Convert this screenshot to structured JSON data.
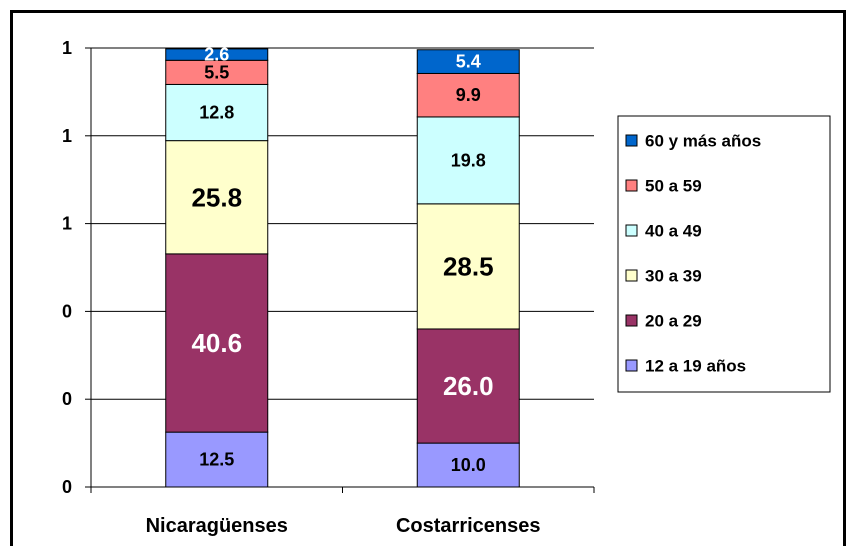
{
  "chart_data": {
    "type": "bar",
    "stacked": true,
    "categories": [
      "Nicaragüenses",
      "Costarricenses"
    ],
    "series": [
      {
        "name": "12 a 19 años",
        "color": "#9999ff",
        "values": [
          12.5,
          10.0
        ],
        "label_color": "#000000"
      },
      {
        "name": "20 a 29",
        "color": "#993366",
        "values": [
          40.6,
          26.0
        ],
        "label_color": "#ffffff"
      },
      {
        "name": "30 a 39",
        "color": "#ffffcc",
        "values": [
          25.8,
          28.5
        ],
        "label_color": "#000000"
      },
      {
        "name": "40 a 49",
        "color": "#ccffff",
        "values": [
          12.8,
          19.8
        ],
        "label_color": "#000000"
      },
      {
        "name": "50 a 59",
        "color": "#ff8080",
        "values": [
          5.5,
          9.9
        ],
        "label_color": "#000000"
      },
      {
        "name": "60 y más años",
        "color": "#0066cc",
        "values": [
          2.6,
          5.4
        ],
        "label_color": "#ffffff"
      }
    ],
    "y_tick_labels": [
      "0",
      "0",
      "0",
      "1",
      "1",
      "1"
    ],
    "ylim": [
      0,
      100
    ],
    "grid": true,
    "legend_position": "right"
  }
}
